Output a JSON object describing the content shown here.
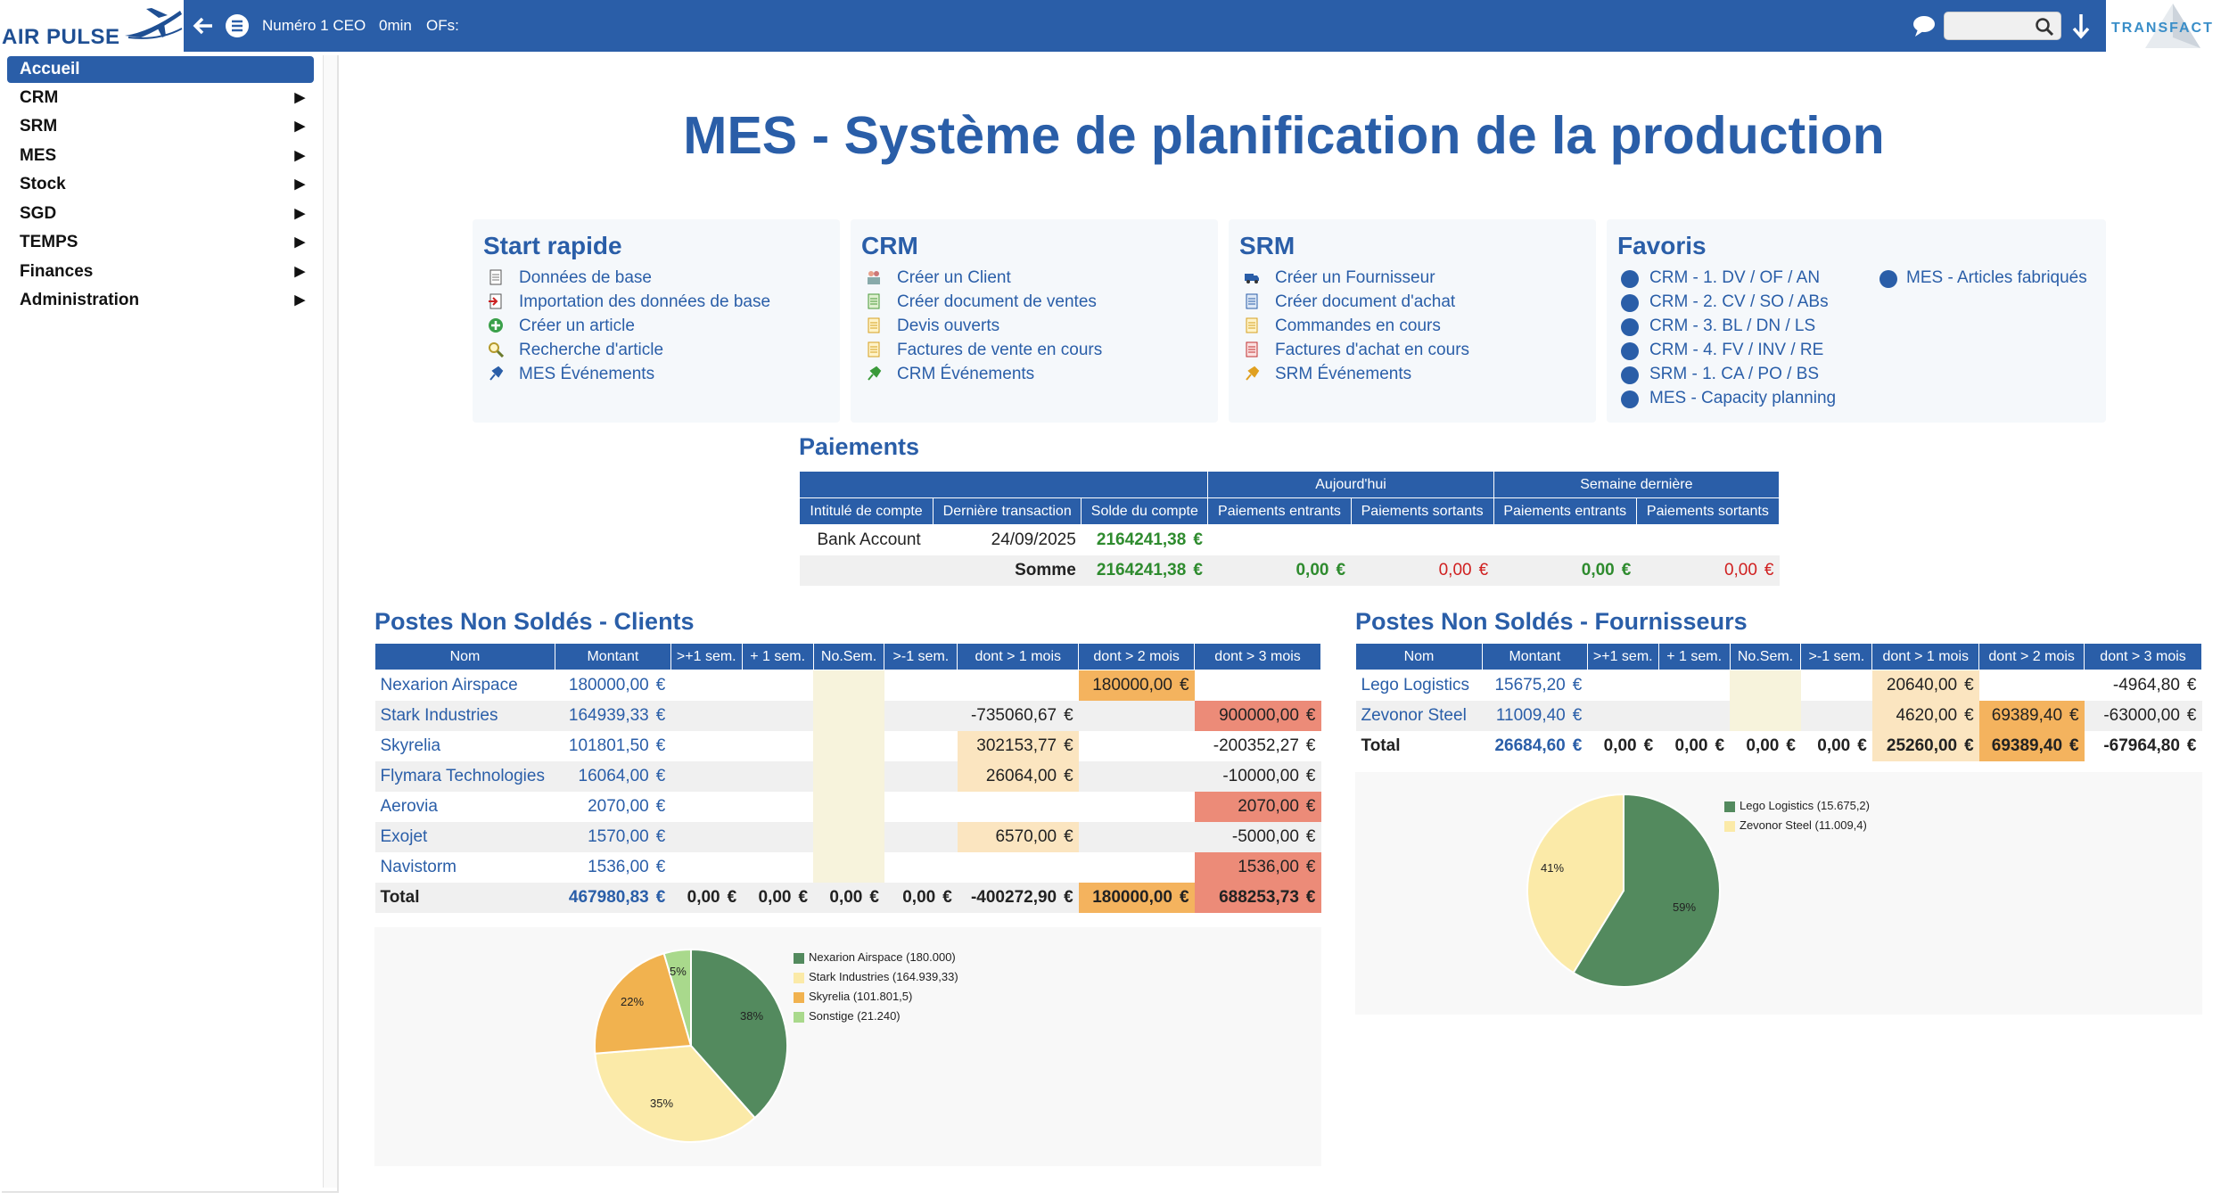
{
  "topbar": {
    "logo": "AIR PULSE",
    "user": "Numéro 1 CEO",
    "timer": "0min",
    "ofs": "OFs:",
    "search_placeholder": "",
    "right_logo": "TRANSFACT"
  },
  "sidebar": {
    "items": [
      {
        "label": "Accueil",
        "active": true
      },
      {
        "label": "CRM"
      },
      {
        "label": "SRM"
      },
      {
        "label": "MES"
      },
      {
        "label": "Stock"
      },
      {
        "label": "SGD"
      },
      {
        "label": "TEMPS"
      },
      {
        "label": "Finances"
      },
      {
        "label": "Administration"
      }
    ]
  },
  "page_title": "MES - Système de planification de la production",
  "cards": {
    "start": {
      "title": "Start rapide",
      "links": [
        "Données de base",
        "Importation des données de base",
        "Créer un article",
        "Recherche d'article",
        "MES Événements"
      ],
      "icons": [
        "document-icon",
        "import-icon",
        "add-icon",
        "search-icon",
        "pin-icon"
      ]
    },
    "crm": {
      "title": "CRM",
      "links": [
        "Créer un Client",
        "Créer document de ventes",
        "Devis ouverts",
        "Factures de vente en cours",
        "CRM Événements"
      ],
      "icons": [
        "people-icon",
        "sales-doc-icon",
        "quote-icon",
        "invoice-icon",
        "pin-icon"
      ]
    },
    "srm": {
      "title": "SRM",
      "links": [
        "Créer un Fournisseur",
        "Créer document d'achat",
        "Commandes en cours",
        "Factures d'achat en cours",
        "SRM Événements"
      ],
      "icons": [
        "truck-icon",
        "purchase-doc-icon",
        "orders-icon",
        "invoice-icon",
        "pin-icon"
      ]
    },
    "favoris": {
      "title": "Favoris",
      "col1": [
        "CRM - 1. DV / OF / AN",
        "CRM - 2. CV / SO / ABs",
        "CRM - 3. BL / DN / LS",
        "CRM - 4. FV / INV / RE",
        "SRM - 1. CA / PO / BS",
        "MES - Capacity planning"
      ],
      "col2": [
        "MES - Articles fabriqués"
      ]
    }
  },
  "paiements": {
    "title": "Paiements",
    "group_headers": [
      "Aujourd'hui",
      "Semaine dernière"
    ],
    "headers": [
      "Intitulé de compte",
      "Dernière transaction",
      "Solde du compte",
      "Paiements entrants",
      "Paiements sortants",
      "Paiements entrants",
      "Paiements sortants"
    ],
    "row": {
      "account": "Bank Account",
      "date": "24/09/2025",
      "balance": "2164241,38"
    },
    "sum": {
      "label": "Somme",
      "balance": "2164241,38",
      "in1": "0,00",
      "out1": "0,00",
      "in2": "0,00",
      "out2": "0,00"
    },
    "currency": "€"
  },
  "clients": {
    "title": "Postes Non Soldés - Clients",
    "headers": [
      "Nom",
      "Montant",
      ">+1 sem.",
      "+ 1 sem.",
      "No.Sem.",
      ">-1 sem.",
      "dont > 1 mois",
      "dont > 2 mois",
      "dont > 3 mois"
    ],
    "rows": [
      {
        "name": "Nexarion Airspace",
        "amount": "180000,00",
        "m1": "",
        "m2": "180000,00",
        "m3": ""
      },
      {
        "name": "Stark Industries",
        "amount": "164939,33",
        "m1": "-735060,67",
        "m2": "",
        "m3": "900000,00"
      },
      {
        "name": "Skyrelia",
        "amount": "101801,50",
        "m1": "302153,77",
        "m2": "",
        "m3": "-200352,27"
      },
      {
        "name": "Flymara Technologies",
        "amount": "16064,00",
        "m1": "26064,00",
        "m2": "",
        "m3": "-10000,00"
      },
      {
        "name": "Aerovia",
        "amount": "2070,00",
        "m1": "",
        "m2": "",
        "m3": "2070,00"
      },
      {
        "name": "Exojet",
        "amount": "1570,00",
        "m1": "6570,00",
        "m2": "",
        "m3": "-5000,00"
      },
      {
        "name": "Navistorm",
        "amount": "1536,00",
        "m1": "",
        "m2": "",
        "m3": "1536,00"
      }
    ],
    "total": {
      "label": "Total",
      "amount": "467980,83",
      "w1": "0,00",
      "w2": "0,00",
      "w3": "0,00",
      "w4": "0,00",
      "m1": "-400272,90",
      "m2": "180000,00",
      "m3": "688253,73"
    }
  },
  "fournisseurs": {
    "title": "Postes Non Soldés - Fournisseurs",
    "headers": [
      "Nom",
      "Montant",
      ">+1 sem.",
      "+ 1 sem.",
      "No.Sem.",
      ">-1 sem.",
      "dont > 1 mois",
      "dont > 2 mois",
      "dont > 3 mois"
    ],
    "rows": [
      {
        "name": "Lego Logistics",
        "amount": "15675,20",
        "m1": "20640,00",
        "m2": "",
        "m3": "-4964,80"
      },
      {
        "name": "Zevonor Steel",
        "amount": "11009,40",
        "m1": "4620,00",
        "m2": "69389,40",
        "m3": "-63000,00"
      }
    ],
    "total": {
      "label": "Total",
      "amount": "26684,60",
      "w1": "0,00",
      "w2": "0,00",
      "w3": "0,00",
      "w4": "0,00",
      "m1": "25260,00",
      "m2": "69389,40",
      "m3": "-67964,80"
    }
  },
  "pie_clients": {
    "legend": [
      "Nexarion Airspace (180.000)",
      "Stark Industries (164.939,33)",
      "Skyrelia (101.801,5)",
      "Sonstige (21.240)"
    ],
    "values": [
      180000,
      164939.33,
      101801.5,
      21240
    ],
    "labels": [
      "38%",
      "35%",
      "22%",
      "5%"
    ],
    "colors": [
      "#538a5e",
      "#fbeaa8",
      "#f1b24f",
      "#a9d98c"
    ]
  },
  "pie_fournisseurs": {
    "legend": [
      "Lego Logistics (15.675,2)",
      "Zevonor Steel (11.009,4)"
    ],
    "values": [
      15675.2,
      11009.4
    ],
    "labels": [
      "59%",
      "41%"
    ],
    "colors": [
      "#538a5e",
      "#fbeaa8"
    ]
  }
}
